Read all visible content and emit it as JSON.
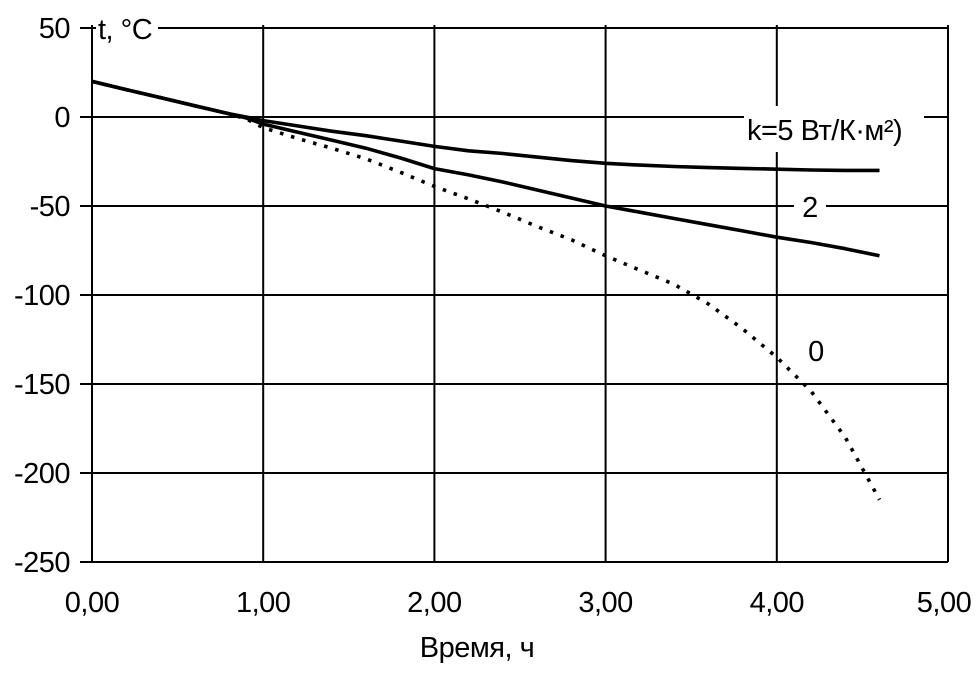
{
  "page": {
    "background": "#ffffff",
    "line_color": "#000000",
    "text_color": "#000000"
  },
  "chart_data": {
    "type": "line",
    "title": "",
    "xlabel": "Время, ч",
    "ylabel": "t, °C",
    "xlim": [
      0,
      5
    ],
    "ylim": [
      -250,
      50
    ],
    "grid": true,
    "legend_position": "inline-curve-labels",
    "x_ticks": [
      {
        "value": 0,
        "label": "0,00"
      },
      {
        "value": 1,
        "label": "1,00"
      },
      {
        "value": 2,
        "label": "2,00"
      },
      {
        "value": 3,
        "label": "3,00"
      },
      {
        "value": 4,
        "label": "4,00"
      },
      {
        "value": 5,
        "label": "5,00"
      }
    ],
    "y_ticks": [
      {
        "value": 50,
        "label": "50"
      },
      {
        "value": 0,
        "label": "0"
      },
      {
        "value": -50,
        "label": "-50"
      },
      {
        "value": -100,
        "label": "-100"
      },
      {
        "value": -150,
        "label": "-150"
      },
      {
        "value": -200,
        "label": "-200"
      },
      {
        "value": -250,
        "label": "-250"
      }
    ],
    "series": [
      {
        "id": "k5",
        "name": "k=5",
        "label": "k=5 Вт/К·м²)",
        "line_style": "solid",
        "color": "#000000",
        "points": [
          [
            0,
            20
          ],
          [
            0.2,
            15.4
          ],
          [
            0.4,
            10.9
          ],
          [
            0.6,
            6.3
          ],
          [
            0.8,
            1.8
          ],
          [
            0.9,
            0
          ],
          [
            1,
            -2
          ],
          [
            1.2,
            -5
          ],
          [
            1.4,
            -8
          ],
          [
            1.6,
            -10.5
          ],
          [
            1.8,
            -13.5
          ],
          [
            2,
            -16.5
          ],
          [
            2.2,
            -19
          ],
          [
            2.4,
            -20.5
          ],
          [
            2.6,
            -22.5
          ],
          [
            2.8,
            -24.5
          ],
          [
            3,
            -26
          ],
          [
            3.2,
            -27
          ],
          [
            3.4,
            -27.8
          ],
          [
            3.6,
            -28.4
          ],
          [
            3.8,
            -28.9
          ],
          [
            4,
            -29.3
          ],
          [
            4.2,
            -29.8
          ],
          [
            4.4,
            -30
          ],
          [
            4.6,
            -30
          ]
        ]
      },
      {
        "id": "k2",
        "name": "k=2",
        "label": "2",
        "line_style": "solid",
        "color": "#000000",
        "points": [
          [
            0,
            20
          ],
          [
            0.2,
            15.4
          ],
          [
            0.4,
            10.9
          ],
          [
            0.6,
            6.3
          ],
          [
            0.8,
            1.8
          ],
          [
            0.9,
            -0.5
          ],
          [
            1,
            -4
          ],
          [
            1.2,
            -8.5
          ],
          [
            1.4,
            -13
          ],
          [
            1.6,
            -17.5
          ],
          [
            1.8,
            -23
          ],
          [
            2,
            -29
          ],
          [
            2.2,
            -32.5
          ],
          [
            2.4,
            -36.5
          ],
          [
            2.6,
            -41
          ],
          [
            2.8,
            -45.5
          ],
          [
            3,
            -50
          ],
          [
            3.2,
            -53.5
          ],
          [
            3.4,
            -57
          ],
          [
            3.6,
            -60.5
          ],
          [
            3.8,
            -64
          ],
          [
            4,
            -67.5
          ],
          [
            4.2,
            -70.5
          ],
          [
            4.4,
            -74
          ],
          [
            4.6,
            -78
          ]
        ]
      },
      {
        "id": "k0",
        "name": "k=0",
        "label": "0",
        "line_style": "dotted",
        "color": "#000000",
        "points": [
          [
            0,
            20
          ],
          [
            0.2,
            15.4
          ],
          [
            0.4,
            10.9
          ],
          [
            0.6,
            6.3
          ],
          [
            0.8,
            1.8
          ],
          [
            0.9,
            -1
          ],
          [
            1,
            -6
          ],
          [
            1.2,
            -12
          ],
          [
            1.4,
            -17.5
          ],
          [
            1.6,
            -23.5
          ],
          [
            1.8,
            -31
          ],
          [
            2,
            -39
          ],
          [
            2.2,
            -46
          ],
          [
            2.4,
            -53.5
          ],
          [
            2.6,
            -61.5
          ],
          [
            2.8,
            -69
          ],
          [
            3,
            -78
          ],
          [
            3.2,
            -86
          ],
          [
            3.4,
            -94
          ],
          [
            3.6,
            -105
          ],
          [
            3.8,
            -119
          ],
          [
            4,
            -135
          ],
          [
            4.2,
            -154
          ],
          [
            4.4,
            -180
          ],
          [
            4.6,
            -215
          ]
        ]
      }
    ]
  }
}
